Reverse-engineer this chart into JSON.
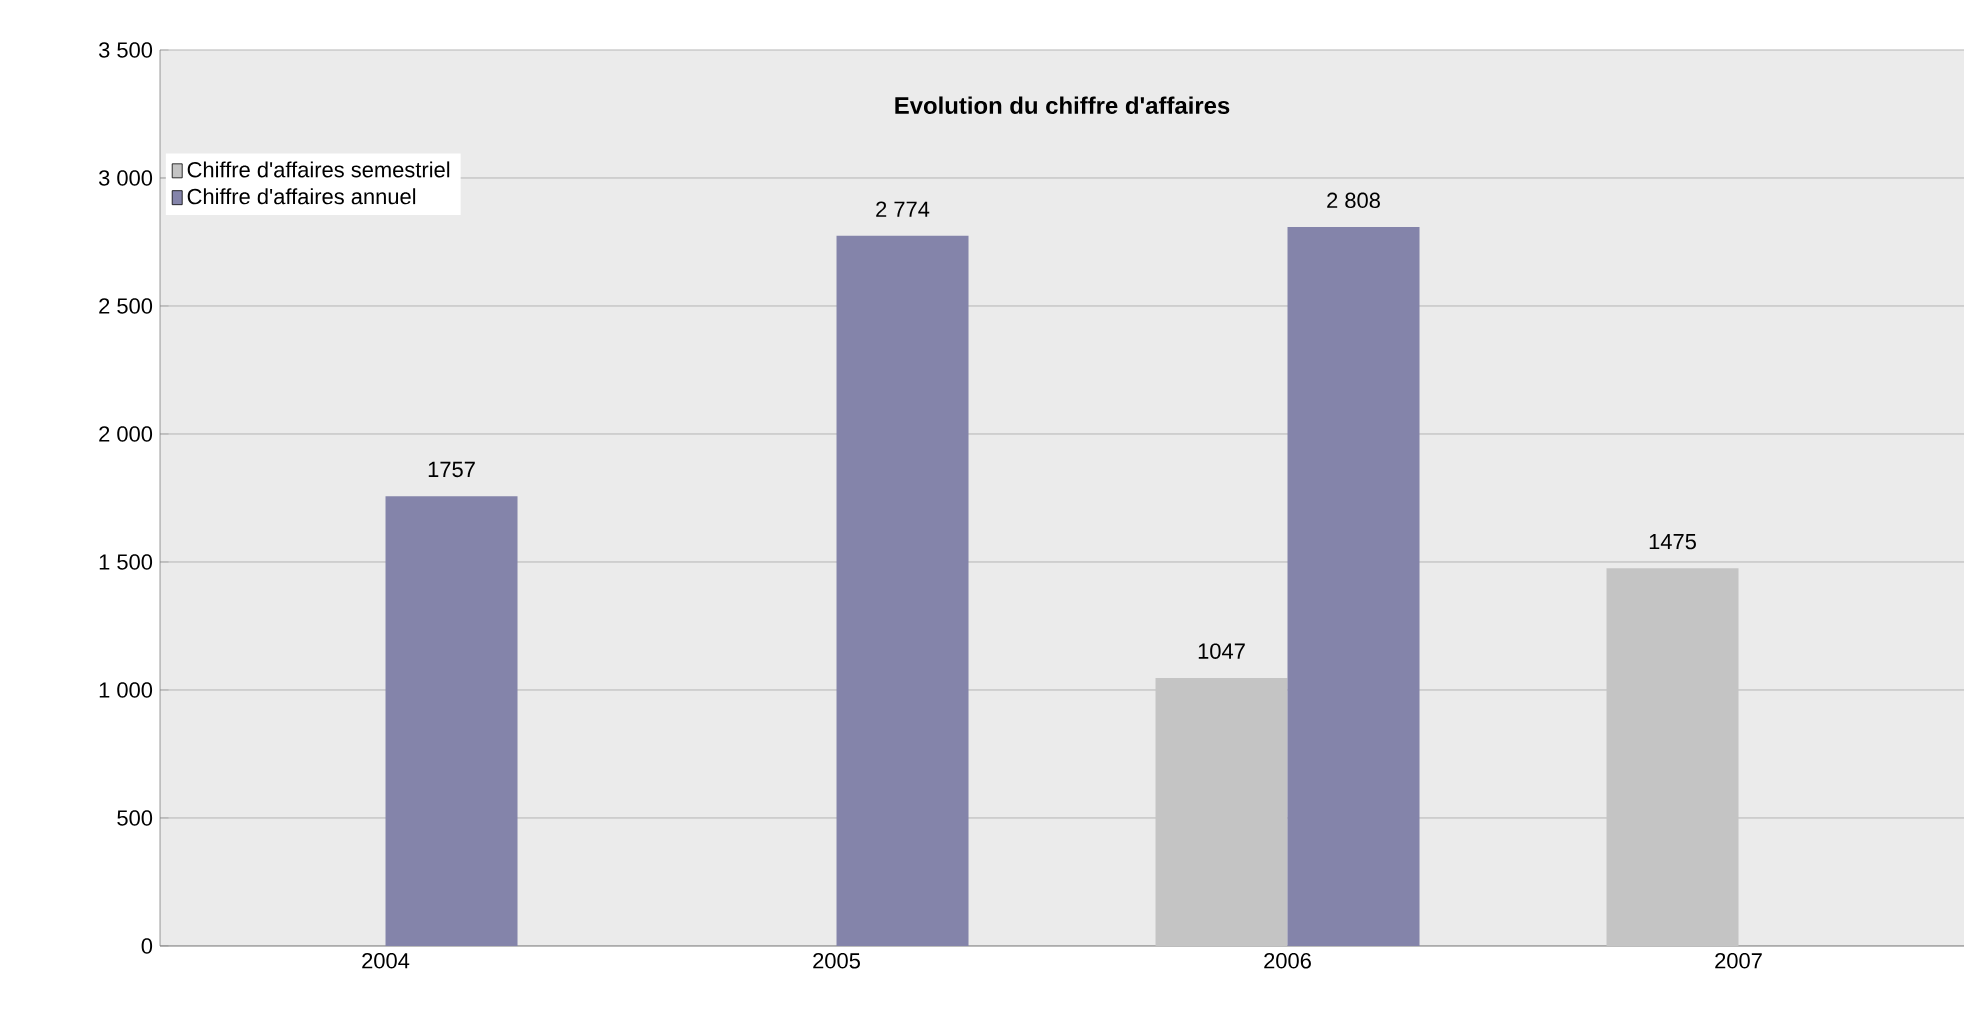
{
  "chart_data": {
    "type": "bar",
    "title": "Evolution du chiffre d'affaires",
    "categories": [
      "2004",
      "2005",
      "2006",
      "2007"
    ],
    "series": [
      {
        "name": "Chiffre d'affaires semestriel",
        "color": "#c4c4c4",
        "values": [
          null,
          null,
          1047,
          1475
        ],
        "value_labels": [
          null,
          null,
          "1047",
          "1475"
        ]
      },
      {
        "name": "Chiffre d'affaires annuel",
        "color": "#8484aa",
        "values": [
          1757,
          2774,
          2808,
          null
        ],
        "value_labels": [
          "1757",
          "2 774",
          "2 808",
          null
        ]
      }
    ],
    "ylim": [
      0,
      3500
    ],
    "yticks": [
      {
        "value": 0,
        "label": "0"
      },
      {
        "value": 500,
        "label": "500"
      },
      {
        "value": 1000,
        "label": "1 000"
      },
      {
        "value": 1500,
        "label": "1 500"
      },
      {
        "value": 2000,
        "label": "2 000"
      },
      {
        "value": 2500,
        "label": "2 500"
      },
      {
        "value": 3000,
        "label": "3 000"
      },
      {
        "value": 3500,
        "label": "3 500"
      }
    ],
    "grid": "y",
    "legend": "top left"
  }
}
